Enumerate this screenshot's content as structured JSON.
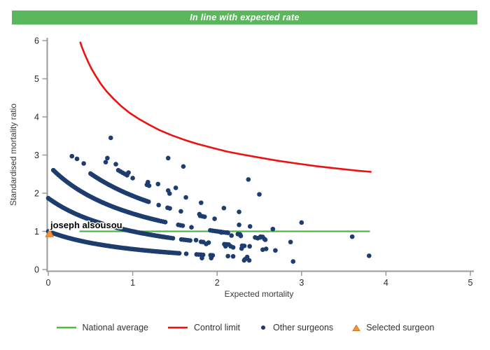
{
  "banner": {
    "title": "In line with expected rate",
    "bg_color": "#5bb75b"
  },
  "chart_data": {
    "type": "scatter",
    "title": "In line with expected rate",
    "xlabel": "Expected mortality",
    "ylabel": "Standardised mortality ratio",
    "xlim": [
      0,
      5
    ],
    "ylim": [
      0,
      6
    ],
    "x_ticks": [
      "0",
      "1",
      "2",
      "3",
      "4",
      "5"
    ],
    "y_ticks": [
      "0",
      "1",
      "2",
      "3",
      "4",
      "5",
      "6"
    ],
    "grid": false,
    "axis_color": "#9a9a9a",
    "tick_label_color": "#2b2b2b",
    "national_average": {
      "label": "National average",
      "color": "#4fb748",
      "y": 1.0,
      "x_start": 0.37,
      "x_end": 3.81
    },
    "control_limit": {
      "label": "Control limit",
      "color": "#ed1111",
      "formula": "y = 1 + 3.05/sqrt(x)",
      "points": [
        [
          0.38,
          5.95
        ],
        [
          0.4,
          5.82
        ],
        [
          0.43,
          5.65
        ],
        [
          0.47,
          5.45
        ],
        [
          0.51,
          5.27
        ],
        [
          0.56,
          5.08
        ],
        [
          0.62,
          4.87
        ],
        [
          0.69,
          4.67
        ],
        [
          0.77,
          4.48
        ],
        [
          0.86,
          4.29
        ],
        [
          0.96,
          4.11
        ],
        [
          1.07,
          3.95
        ],
        [
          1.19,
          3.8
        ],
        [
          1.32,
          3.65
        ],
        [
          1.46,
          3.52
        ],
        [
          1.61,
          3.4
        ],
        [
          1.77,
          3.29
        ],
        [
          1.94,
          3.19
        ],
        [
          2.12,
          3.09
        ],
        [
          2.31,
          3.01
        ],
        [
          2.51,
          2.93
        ],
        [
          2.72,
          2.85
        ],
        [
          2.94,
          2.78
        ],
        [
          3.17,
          2.71
        ],
        [
          3.41,
          2.65
        ],
        [
          3.66,
          2.59
        ],
        [
          3.82,
          2.56
        ]
      ]
    },
    "other_surgeons": {
      "label": "Other surgeons",
      "color": "#1d3d6f",
      "band_formula": "smr = (deaths + 1.15) / (expected + 1.15)",
      "band_offset": 1.15,
      "bands": [
        {
          "deaths": 0,
          "x_start": 0.0,
          "x_end": 2.42,
          "solid_until": 1.55
        },
        {
          "deaths": 1,
          "x_start": 0.0,
          "x_end": 2.62,
          "solid_until": 1.42
        },
        {
          "deaths": 2,
          "x_start": 0.06,
          "x_end": 2.58,
          "solid_until": 1.3
        },
        {
          "deaths": 3,
          "x_start": 0.5,
          "x_end": 2.02,
          "solid_until": 1.18
        },
        {
          "deaths": 4,
          "x_start": 0.68,
          "x_end": 1.5,
          "solid_until": 0.0
        }
      ],
      "points": [
        [
          0.28,
          2.97
        ],
        [
          0.34,
          2.9
        ],
        [
          0.42,
          2.78
        ],
        [
          0.74,
          3.45
        ],
        [
          0.7,
          2.92
        ],
        [
          0.8,
          2.76
        ],
        [
          0.95,
          2.54
        ],
        [
          1.18,
          2.29
        ],
        [
          1.3,
          2.24
        ],
        [
          1.42,
          2.92
        ],
        [
          1.6,
          2.7
        ],
        [
          1.42,
          2.07
        ],
        [
          1.51,
          2.14
        ],
        [
          1.63,
          1.89
        ],
        [
          1.81,
          1.75
        ],
        [
          2.37,
          2.36
        ],
        [
          2.5,
          1.97
        ],
        [
          1.79,
          1.45
        ],
        [
          2.08,
          1.61
        ],
        [
          2.26,
          1.51
        ],
        [
          1.97,
          1.33
        ],
        [
          2.26,
          1.17
        ],
        [
          2.39,
          1.13
        ],
        [
          2.05,
          0.97
        ],
        [
          2.12,
          0.97
        ],
        [
          2.17,
          0.89
        ],
        [
          2.28,
          0.88
        ],
        [
          2.19,
          0.58
        ],
        [
          2.29,
          0.55
        ],
        [
          2.45,
          0.84
        ],
        [
          2.51,
          0.84
        ],
        [
          2.56,
          0.8
        ],
        [
          2.66,
          1.06
        ],
        [
          3.0,
          1.23
        ],
        [
          2.57,
          0.78
        ],
        [
          2.58,
          0.54
        ],
        [
          2.69,
          0.5
        ],
        [
          2.87,
          0.72
        ],
        [
          2.9,
          0.21
        ],
        [
          3.6,
          0.86
        ],
        [
          3.8,
          0.36
        ],
        [
          2.32,
          0.24
        ],
        [
          2.38,
          0.24
        ],
        [
          1.82,
          0.3
        ],
        [
          1.93,
          0.3
        ],
        [
          2.1,
          0.61
        ],
        [
          2.16,
          0.61
        ],
        [
          1.87,
          0.67
        ],
        [
          1.75,
          0.77
        ],
        [
          2.48,
          0.82
        ],
        [
          2.54,
          0.52
        ],
        [
          2.33,
          0.27
        ]
      ]
    },
    "selected_surgeon": {
      "label": "Selected surgeon",
      "name": "joseph alsousou",
      "x": 0.015,
      "y": 0.95,
      "color": "#f6913e",
      "border_color": "#cf7b24"
    }
  }
}
